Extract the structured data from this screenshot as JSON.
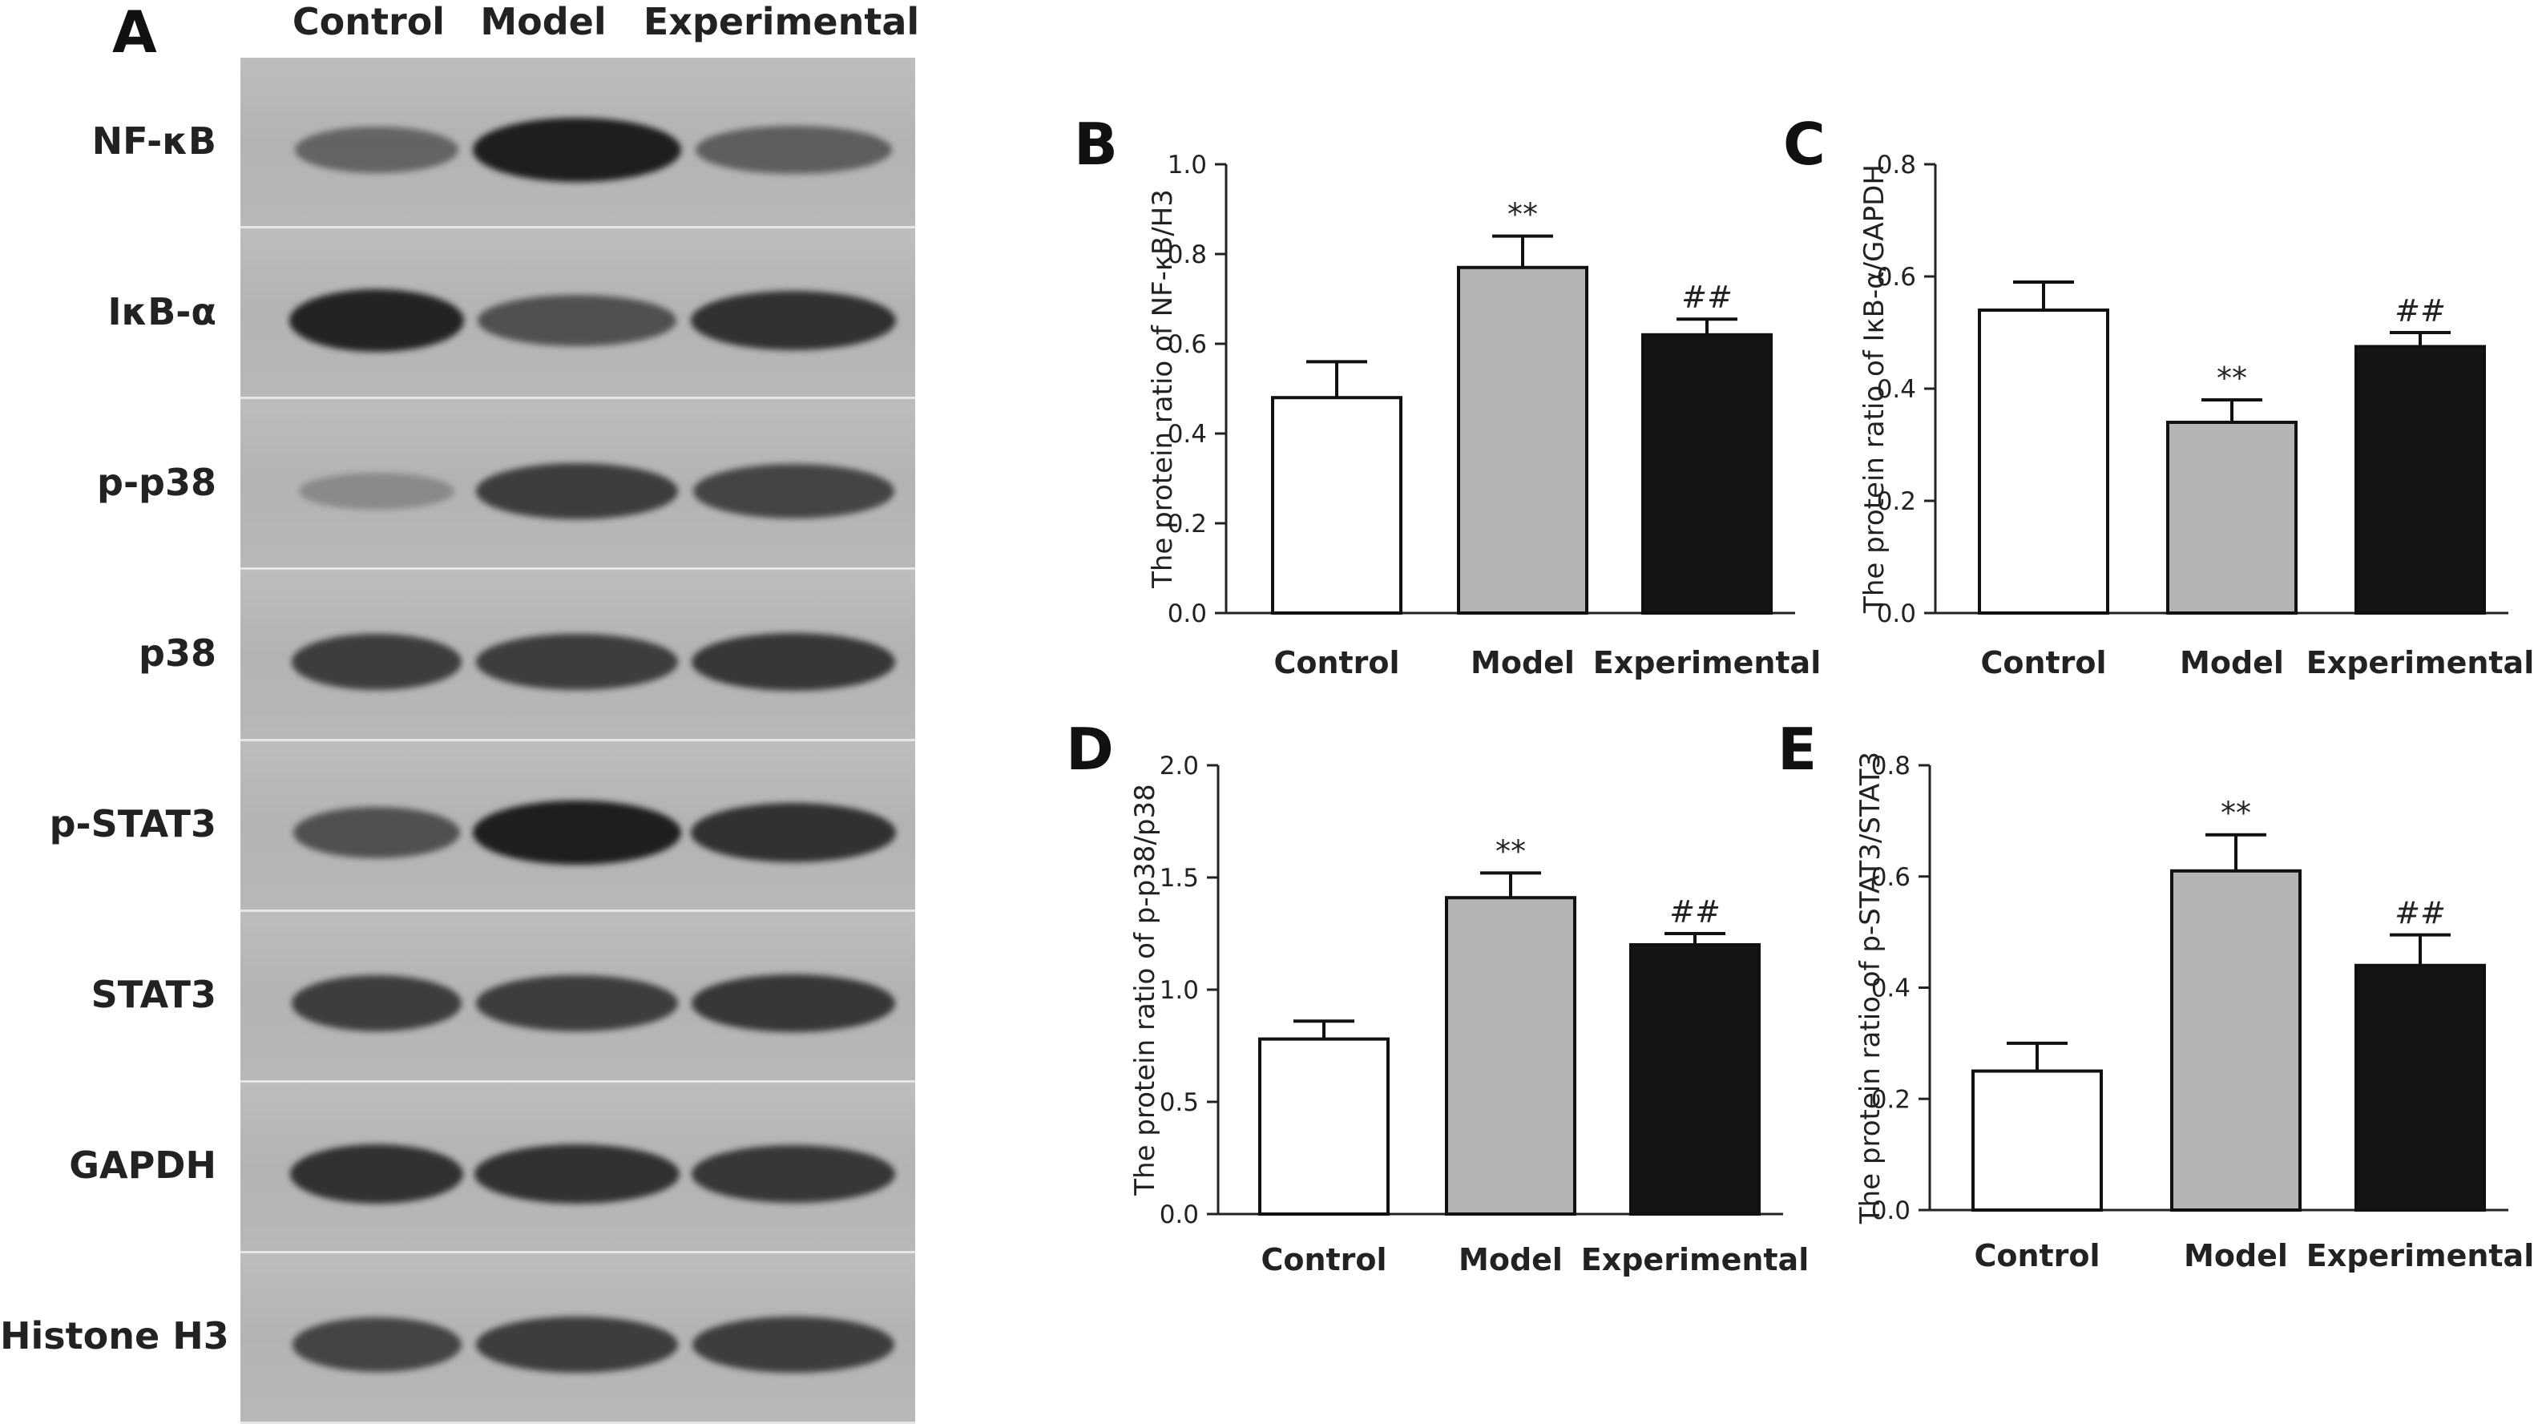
{
  "western_blot": {
    "panel_letter": "A",
    "columns": [
      "Control",
      "Model",
      "Experimental"
    ],
    "rows": [
      {
        "label": "NF-κB",
        "intensities": [
          0.45,
          1.0,
          0.5
        ]
      },
      {
        "label": "IκB-α",
        "intensities": [
          0.95,
          0.6,
          0.85
        ]
      },
      {
        "label": "p-p38",
        "intensities": [
          0.15,
          0.75,
          0.7
        ]
      },
      {
        "label": "p38",
        "intensities": [
          0.75,
          0.75,
          0.8
        ]
      },
      {
        "label": "p-STAT3",
        "intensities": [
          0.6,
          1.0,
          0.85
        ]
      },
      {
        "label": "STAT3",
        "intensities": [
          0.75,
          0.75,
          0.8
        ]
      },
      {
        "label": "GAPDH",
        "intensities": [
          0.85,
          0.85,
          0.8
        ]
      },
      {
        "label": "Histone H3",
        "intensities": [
          0.7,
          0.75,
          0.75
        ]
      }
    ]
  },
  "chart_data": [
    {
      "panel_letter": "B",
      "type": "bar",
      "categories": [
        "Control",
        "Model",
        "Experimental"
      ],
      "values": [
        0.48,
        0.77,
        0.62
      ],
      "errors": [
        0.08,
        0.07,
        0.035
      ],
      "annotations": [
        "",
        "**",
        "##"
      ],
      "bar_colors": [
        "#ffffff",
        "#b4b4b4",
        "#151515"
      ],
      "ylabel": "The protein ratio of NF-κB/H3",
      "ylim": [
        0,
        1.0
      ],
      "yticks": [
        "0.0",
        "0.2",
        "0.4",
        "0.6",
        "0.8",
        "1.0"
      ],
      "grid": false,
      "legend": "none"
    },
    {
      "panel_letter": "C",
      "type": "bar",
      "categories": [
        "Control",
        "Model",
        "Experimental"
      ],
      "values": [
        0.54,
        0.34,
        0.475
      ],
      "errors": [
        0.05,
        0.04,
        0.025
      ],
      "annotations": [
        "",
        "**",
        "##"
      ],
      "bar_colors": [
        "#ffffff",
        "#b4b4b4",
        "#151515"
      ],
      "ylabel": "The protein ratio of IκB-α/GAPDH",
      "ylim": [
        0,
        0.8
      ],
      "yticks": [
        "0.0",
        "0.2",
        "0.4",
        "0.6",
        "0.8"
      ],
      "grid": false,
      "legend": "none"
    },
    {
      "panel_letter": "D",
      "type": "bar",
      "categories": [
        "Control",
        "Model",
        "Experimental"
      ],
      "values": [
        0.78,
        1.41,
        1.2
      ],
      "errors": [
        0.08,
        0.11,
        0.05
      ],
      "annotations": [
        "",
        "**",
        "##"
      ],
      "bar_colors": [
        "#ffffff",
        "#b4b4b4",
        "#151515"
      ],
      "ylabel": "The protein ratio of p-p38/p38",
      "ylim": [
        0,
        2.0
      ],
      "yticks": [
        "0.0",
        "0.5",
        "1.0",
        "1.5",
        "2.0"
      ],
      "grid": false,
      "legend": "none"
    },
    {
      "panel_letter": "E",
      "type": "bar",
      "categories": [
        "Control",
        "Model",
        "Experimental"
      ],
      "values": [
        0.25,
        0.61,
        0.44
      ],
      "errors": [
        0.05,
        0.065,
        0.055
      ],
      "annotations": [
        "",
        "**",
        "##"
      ],
      "bar_colors": [
        "#ffffff",
        "#b4b4b4",
        "#151515"
      ],
      "ylabel": "The protein ratio of p-STAT3/STAT3",
      "ylim": [
        0,
        0.8
      ],
      "yticks": [
        "0.0",
        "0.2",
        "0.4",
        "0.6",
        "0.8"
      ],
      "grid": false,
      "legend": "none"
    }
  ]
}
